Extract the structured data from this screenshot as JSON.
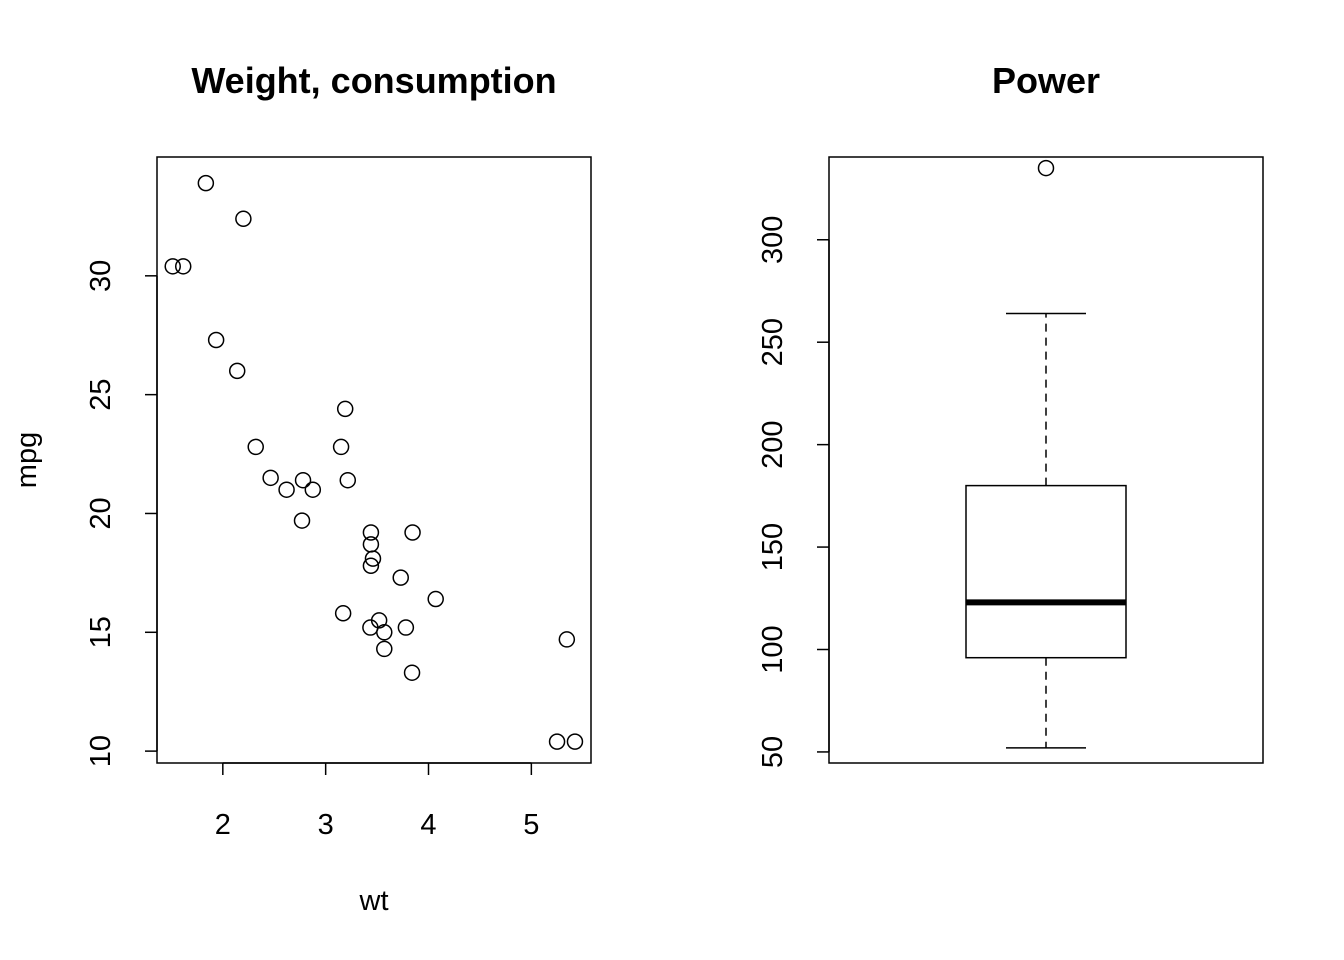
{
  "chart_data": [
    {
      "type": "scatter",
      "title": "Weight, consumption",
      "xlabel": "wt",
      "ylabel": "mpg",
      "xlim": [
        1.36,
        5.58
      ],
      "ylim": [
        9.5,
        35.0
      ],
      "xticks": [
        2,
        3,
        4,
        5
      ],
      "yticks": [
        10,
        15,
        20,
        25,
        30
      ],
      "grid": false,
      "points": [
        {
          "x": 2.62,
          "y": 21.0
        },
        {
          "x": 2.875,
          "y": 21.0
        },
        {
          "x": 2.32,
          "y": 22.8
        },
        {
          "x": 3.215,
          "y": 21.4
        },
        {
          "x": 3.44,
          "y": 18.7
        },
        {
          "x": 3.46,
          "y": 18.1
        },
        {
          "x": 3.57,
          "y": 14.3
        },
        {
          "x": 3.19,
          "y": 24.4
        },
        {
          "x": 3.15,
          "y": 22.8
        },
        {
          "x": 3.44,
          "y": 19.2
        },
        {
          "x": 3.44,
          "y": 17.8
        },
        {
          "x": 4.07,
          "y": 16.4
        },
        {
          "x": 3.73,
          "y": 17.3
        },
        {
          "x": 3.78,
          "y": 15.2
        },
        {
          "x": 5.25,
          "y": 10.4
        },
        {
          "x": 5.424,
          "y": 10.4
        },
        {
          "x": 5.345,
          "y": 14.7
        },
        {
          "x": 2.2,
          "y": 32.4
        },
        {
          "x": 1.615,
          "y": 30.4
        },
        {
          "x": 1.835,
          "y": 33.9
        },
        {
          "x": 2.465,
          "y": 21.5
        },
        {
          "x": 3.52,
          "y": 15.5
        },
        {
          "x": 3.435,
          "y": 15.2
        },
        {
          "x": 3.84,
          "y": 13.3
        },
        {
          "x": 3.845,
          "y": 19.2
        },
        {
          "x": 1.935,
          "y": 27.3
        },
        {
          "x": 2.14,
          "y": 26.0
        },
        {
          "x": 1.513,
          "y": 30.4
        },
        {
          "x": 3.17,
          "y": 15.8
        },
        {
          "x": 2.77,
          "y": 19.7
        },
        {
          "x": 3.57,
          "y": 15.0
        },
        {
          "x": 2.78,
          "y": 21.4
        }
      ]
    },
    {
      "type": "box",
      "title": "Power",
      "xlabel": "",
      "ylabel": "",
      "ylim": [
        44.6,
        340.4
      ],
      "yticks": [
        50,
        100,
        150,
        200,
        250,
        300
      ],
      "grid": false,
      "box": {
        "whisker_low": 52,
        "q1": 96,
        "median": 123,
        "q3": 180,
        "whisker_high": 264,
        "outliers": [
          335
        ]
      }
    }
  ]
}
